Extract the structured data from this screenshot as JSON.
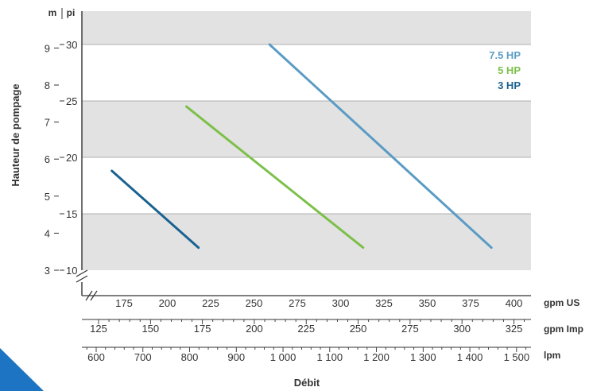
{
  "chart_data": {
    "type": "line",
    "xlabel": "Débit",
    "ylabel": "Hauteur de pompage",
    "x_axes": [
      {
        "unit": "gpm US",
        "ticks": [
          175,
          200,
          225,
          250,
          275,
          300,
          325,
          350,
          375,
          400
        ]
      },
      {
        "unit": "gpm Imp",
        "ticks": [
          125,
          150,
          175,
          200,
          225,
          250,
          275,
          300,
          325
        ]
      },
      {
        "unit": "lpm",
        "ticks": [
          "600",
          "700",
          "800",
          "900",
          "1 000",
          "1 100",
          "1 200",
          "1 300",
          "1 400",
          "1 500"
        ]
      }
    ],
    "xlim_gpm_us": [
      150,
      400
    ],
    "y_axes": [
      {
        "unit": "m",
        "ticks": [
          3,
          4,
          5,
          6,
          7,
          8,
          9
        ]
      },
      {
        "unit": "pi",
        "ticks": [
          10,
          15,
          20,
          25,
          30
        ]
      }
    ],
    "ylim_pi": [
      10,
      32
    ],
    "series": [
      {
        "name": "7.5 HP",
        "color": "#5b9cc4",
        "x": [
          259,
          387
        ],
        "y": [
          30,
          12
        ]
      },
      {
        "name": "5 HP",
        "color": "#7cc04a",
        "x": [
          211,
          313
        ],
        "y": [
          24.5,
          12
        ]
      },
      {
        "name": "3 HP",
        "color": "#1a6290",
        "x": [
          168,
          218
        ],
        "y": [
          18.8,
          12
        ]
      }
    ],
    "legend": "top-right",
    "background_bands": true
  }
}
